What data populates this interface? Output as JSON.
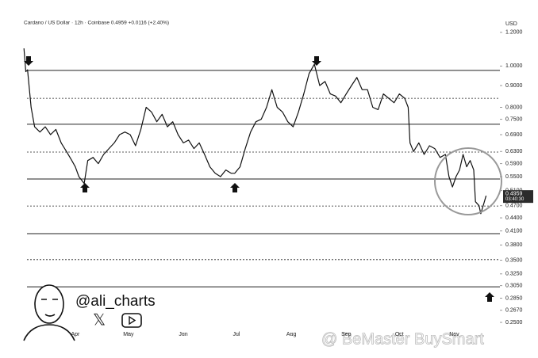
{
  "chart_data": {
    "type": "line",
    "title": "Cardano / US Dollar · 12h · Coinbase   0.4959   +0.0116 (+2.40%)",
    "currency": "USD",
    "log_scale": true,
    "color": "#111111",
    "price_tag": "0.4959",
    "countdown": "03:40:30",
    "handle": "@ali_charts",
    "watermark": "@ BeMaster BuySmart",
    "xlim": [
      -30,
      238
    ],
    "ylim": [
      0.2365,
      1.257
    ],
    "xticks": [
      {
        "value": 0,
        "label": "Apr"
      },
      {
        "value": 30,
        "label": "May"
      },
      {
        "value": 61,
        "label": "Jun"
      },
      {
        "value": 91,
        "label": "Jul"
      },
      {
        "value": 122,
        "label": "Aug"
      },
      {
        "value": 153,
        "label": "Sep"
      },
      {
        "value": 183,
        "label": "Oct"
      },
      {
        "value": 214,
        "label": "Nov"
      }
    ],
    "yticks": [
      {
        "value": 1.2,
        "label": "1.2000"
      },
      {
        "value": 1.0,
        "label": "1.0000"
      },
      {
        "value": 0.9,
        "label": "0.9000"
      },
      {
        "value": 0.8,
        "label": "0.8000"
      },
      {
        "value": 0.75,
        "label": "0.7500"
      },
      {
        "value": 0.69,
        "label": "0.6900"
      },
      {
        "value": 0.63,
        "label": "0.6300"
      },
      {
        "value": 0.59,
        "label": "0.5900"
      },
      {
        "value": 0.55,
        "label": "0.5500"
      },
      {
        "value": 0.51,
        "label": "0.5100"
      },
      {
        "value": 0.47,
        "label": "0.4700"
      },
      {
        "value": 0.44,
        "label": "0.4400"
      },
      {
        "value": 0.41,
        "label": "0.4100"
      },
      {
        "value": 0.38,
        "label": "0.3800"
      },
      {
        "value": 0.35,
        "label": "0.3500"
      },
      {
        "value": 0.325,
        "label": "0.3250"
      },
      {
        "value": 0.305,
        "label": "0.3050"
      },
      {
        "value": 0.285,
        "label": "0.2850"
      },
      {
        "value": 0.267,
        "label": "0.2670"
      },
      {
        "value": 0.25,
        "label": "0.2500"
      }
    ],
    "levels": [
      {
        "value": 0.977,
        "style": "solid"
      },
      {
        "value": 0.84,
        "style": "dotted"
      },
      {
        "value": 0.73,
        "style": "solid"
      },
      {
        "value": 0.628,
        "style": "dotted"
      },
      {
        "value": 0.543,
        "style": "solid"
      },
      {
        "value": 0.469,
        "style": "dotted"
      },
      {
        "value": 0.404,
        "style": "solid"
      },
      {
        "value": 0.351,
        "style": "dotted"
      },
      {
        "value": 0.303,
        "style": "solid"
      }
    ],
    "x": [
      -29,
      -28,
      -27,
      -25,
      -23,
      -20,
      -17,
      -14,
      -11,
      -8,
      -5,
      -2,
      0,
      2,
      5,
      7,
      10,
      13,
      16,
      19,
      22,
      25,
      28,
      31,
      34,
      37,
      40,
      43,
      46,
      49,
      52,
      55,
      58,
      61,
      64,
      67,
      70,
      73,
      76,
      79,
      82,
      85,
      88,
      90,
      93,
      96,
      99,
      102,
      105,
      108,
      111,
      114,
      117,
      120,
      123,
      126,
      129,
      132,
      135,
      138,
      141,
      144,
      147,
      150,
      153,
      156,
      159,
      162,
      165,
      168,
      171,
      174,
      177,
      180,
      183,
      186,
      188,
      189,
      191,
      194,
      197,
      200,
      203,
      206,
      209,
      211,
      213,
      215,
      217,
      219,
      221,
      223,
      225,
      226,
      228,
      229,
      231,
      232
    ],
    "values": [
      1.1,
      0.97,
      0.98,
      0.8,
      0.72,
      0.7,
      0.72,
      0.69,
      0.71,
      0.66,
      0.63,
      0.6,
      0.58,
      0.55,
      0.53,
      0.6,
      0.61,
      0.59,
      0.62,
      0.64,
      0.66,
      0.69,
      0.7,
      0.69,
      0.65,
      0.71,
      0.8,
      0.78,
      0.74,
      0.77,
      0.72,
      0.74,
      0.69,
      0.66,
      0.67,
      0.64,
      0.66,
      0.62,
      0.58,
      0.56,
      0.55,
      0.57,
      0.56,
      0.56,
      0.58,
      0.64,
      0.7,
      0.74,
      0.75,
      0.8,
      0.88,
      0.8,
      0.78,
      0.74,
      0.72,
      0.78,
      0.86,
      0.96,
      1.01,
      0.9,
      0.92,
      0.86,
      0.85,
      0.82,
      0.86,
      0.9,
      0.94,
      0.88,
      0.88,
      0.8,
      0.79,
      0.86,
      0.84,
      0.82,
      0.86,
      0.84,
      0.8,
      0.66,
      0.63,
      0.66,
      0.62,
      0.65,
      0.64,
      0.61,
      0.62,
      0.55,
      0.52,
      0.55,
      0.57,
      0.62,
      0.58,
      0.6,
      0.57,
      0.48,
      0.47,
      0.45,
      0.48,
      0.4959
    ]
  }
}
